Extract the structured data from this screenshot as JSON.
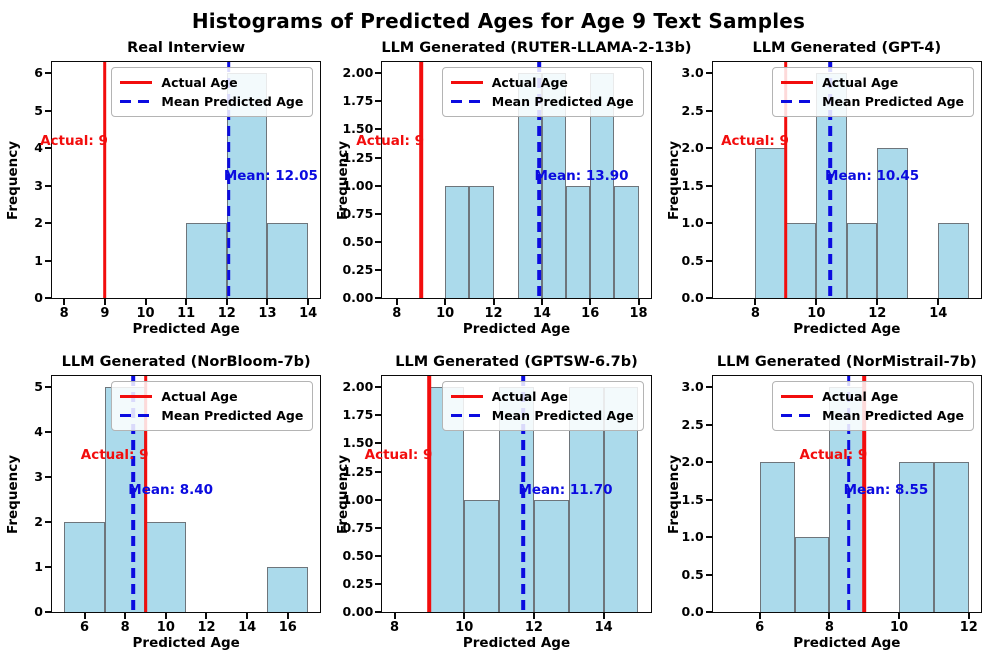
{
  "figure_title": "Histograms of Predicted Ages for Age 9 Text Samples",
  "legend": {
    "actual_label": "Actual Age",
    "mean_label": "Mean Predicted Age"
  },
  "colors": {
    "actual_line": "#f20d0d",
    "mean_line": "#0b0be0",
    "bar_fill": "#abdaeb",
    "bar_edge": "#6e757b"
  },
  "chart_data": [
    {
      "type": "bar",
      "title": "Real Interview",
      "xlabel": "Predicted Age",
      "ylabel": "Frequency",
      "xlim": [
        7.7,
        14.3
      ],
      "ylim": [
        0,
        6.3
      ],
      "xticks": [
        "8",
        "9",
        "10",
        "11",
        "12",
        "13",
        "14"
      ],
      "yticks": [
        "0",
        "1",
        "2",
        "3",
        "4",
        "5",
        "6"
      ],
      "bars": [
        {
          "x0": 11,
          "x1": 12,
          "freq": 2
        },
        {
          "x0": 12,
          "x1": 13,
          "freq": 6
        },
        {
          "x0": 13,
          "x1": 14,
          "freq": 2
        }
      ],
      "actual_age": 9,
      "actual_text": "Actual: 9",
      "mean_age": 12.05,
      "mean_text": "Mean: 12.05"
    },
    {
      "type": "bar",
      "title": "LLM Generated (RUTER-LLAMA-2-13b)",
      "xlabel": "Predicted Age",
      "ylabel": "Frequency",
      "xlim": [
        7.4,
        18.5
      ],
      "ylim": [
        0,
        2.1
      ],
      "xticks": [
        "8",
        "10",
        "12",
        "14",
        "16",
        "18"
      ],
      "yticks": [
        "0.00",
        "0.25",
        "0.50",
        "0.75",
        "1.00",
        "1.25",
        "1.50",
        "1.75",
        "2.00"
      ],
      "bars": [
        {
          "x0": 10,
          "x1": 11,
          "freq": 1
        },
        {
          "x0": 11,
          "x1": 12,
          "freq": 1
        },
        {
          "x0": 13,
          "x1": 14,
          "freq": 2
        },
        {
          "x0": 14,
          "x1": 15,
          "freq": 2
        },
        {
          "x0": 15,
          "x1": 16,
          "freq": 1
        },
        {
          "x0": 16,
          "x1": 17,
          "freq": 2
        },
        {
          "x0": 17,
          "x1": 18,
          "freq": 1
        }
      ],
      "actual_age": 9,
      "actual_text": "Actual: 9",
      "mean_age": 13.9,
      "mean_text": "Mean: 13.90"
    },
    {
      "type": "bar",
      "title": "LLM Generated (GPT-4)",
      "xlabel": "Predicted Age",
      "ylabel": "Frequency",
      "xlim": [
        6.6,
        15.4
      ],
      "ylim": [
        0,
        3.15
      ],
      "xticks": [
        "8",
        "10",
        "12",
        "14"
      ],
      "yticks": [
        "0.0",
        "0.5",
        "1.0",
        "1.5",
        "2.0",
        "2.5",
        "3.0"
      ],
      "bars": [
        {
          "x0": 8,
          "x1": 9,
          "freq": 2
        },
        {
          "x0": 9,
          "x1": 10,
          "freq": 1
        },
        {
          "x0": 10,
          "x1": 11,
          "freq": 3
        },
        {
          "x0": 11,
          "x1": 12,
          "freq": 1
        },
        {
          "x0": 12,
          "x1": 13,
          "freq": 2
        },
        {
          "x0": 14,
          "x1": 15,
          "freq": 1
        }
      ],
      "actual_age": 9,
      "actual_text": "Actual: 9",
      "mean_age": 10.45,
      "mean_text": "Mean: 10.45"
    },
    {
      "type": "bar",
      "title": "LLM Generated (NorBloom-7b)",
      "xlabel": "Predicted Age",
      "ylabel": "Frequency",
      "xlim": [
        4.4,
        17.6
      ],
      "ylim": [
        0,
        5.25
      ],
      "xticks": [
        "6",
        "8",
        "10",
        "12",
        "14",
        "16"
      ],
      "yticks": [
        "0",
        "1",
        "2",
        "3",
        "4",
        "5"
      ],
      "bars": [
        {
          "x0": 5,
          "x1": 7,
          "freq": 2
        },
        {
          "x0": 7,
          "x1": 9,
          "freq": 5
        },
        {
          "x0": 9,
          "x1": 11,
          "freq": 2
        },
        {
          "x0": 15,
          "x1": 17,
          "freq": 1
        }
      ],
      "actual_age": 9,
      "actual_text": "Actual: 9",
      "mean_age": 8.4,
      "mean_text": "Mean: 8.40"
    },
    {
      "type": "bar",
      "title": "LLM Generated (GPTSW-6.7b)",
      "xlabel": "Predicted Age",
      "ylabel": "Frequency",
      "xlim": [
        7.65,
        15.35
      ],
      "ylim": [
        0,
        2.1
      ],
      "xticks": [
        "8",
        "10",
        "12",
        "14"
      ],
      "yticks": [
        "0.00",
        "0.25",
        "0.50",
        "0.75",
        "1.00",
        "1.25",
        "1.50",
        "1.75",
        "2.00"
      ],
      "bars": [
        {
          "x0": 9,
          "x1": 10,
          "freq": 2
        },
        {
          "x0": 10,
          "x1": 11,
          "freq": 1
        },
        {
          "x0": 11,
          "x1": 12,
          "freq": 2
        },
        {
          "x0": 12,
          "x1": 13,
          "freq": 1
        },
        {
          "x0": 13,
          "x1": 14,
          "freq": 2
        },
        {
          "x0": 14,
          "x1": 15,
          "freq": 2
        }
      ],
      "actual_age": 9,
      "actual_text": "Actual: 9",
      "mean_age": 11.7,
      "mean_text": "Mean: 11.70"
    },
    {
      "type": "bar",
      "title": "LLM Generated (NorMistrail-7b)",
      "xlabel": "Predicted Age",
      "ylabel": "Frequency",
      "xlim": [
        4.65,
        12.35
      ],
      "ylim": [
        0,
        3.15
      ],
      "xticks": [
        "6",
        "8",
        "10",
        "12"
      ],
      "yticks": [
        "0.0",
        "0.5",
        "1.0",
        "1.5",
        "2.0",
        "2.5",
        "3.0"
      ],
      "bars": [
        {
          "x0": 6,
          "x1": 7,
          "freq": 2
        },
        {
          "x0": 7,
          "x1": 8,
          "freq": 1
        },
        {
          "x0": 8,
          "x1": 9,
          "freq": 3
        },
        {
          "x0": 10,
          "x1": 11,
          "freq": 2
        },
        {
          "x0": 11,
          "x1": 12,
          "freq": 2
        }
      ],
      "actual_age": 9,
      "actual_text": "Actual: 9",
      "mean_age": 8.55,
      "mean_text": "Mean: 8.55"
    }
  ]
}
